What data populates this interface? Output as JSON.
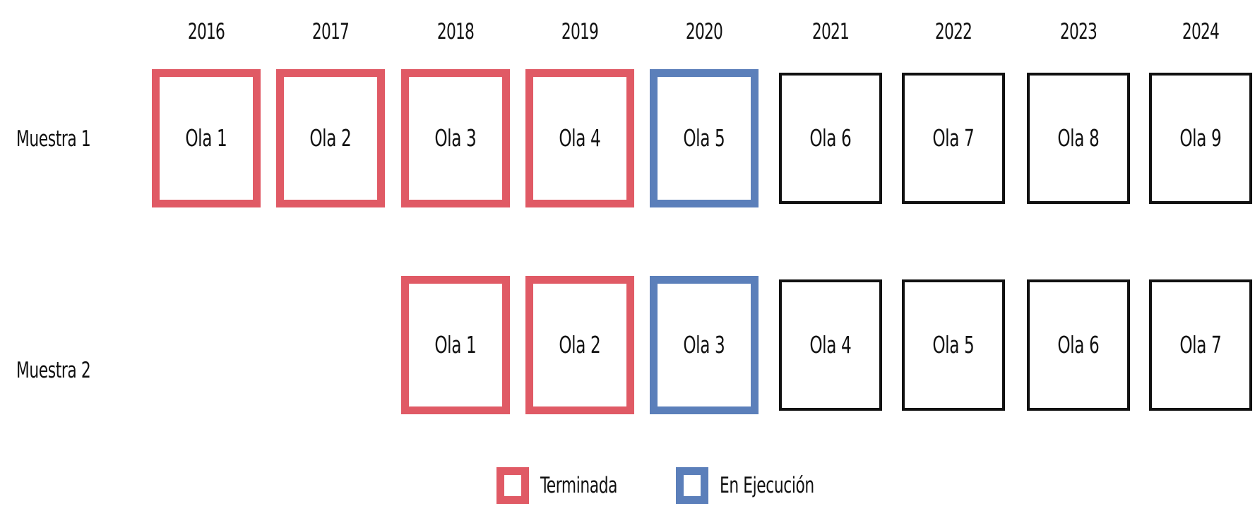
{
  "years": [
    "2016",
    "2017",
    "2018",
    "2019",
    "2020",
    "2021",
    "2022",
    "2023",
    "2024"
  ],
  "rows": [
    {
      "label": "Muestra 1",
      "waves": [
        {
          "label": "Ola 1",
          "year": "2016",
          "status": "Terminada"
        },
        {
          "label": "Ola 2",
          "year": "2017",
          "status": "Terminada"
        },
        {
          "label": "Ola 3",
          "year": "2018",
          "status": "Terminada"
        },
        {
          "label": "Ola 4",
          "year": "2019",
          "status": "Terminada"
        },
        {
          "label": "Ola 5",
          "year": "2020",
          "status": "En Ejecución"
        },
        {
          "label": "Ola 6",
          "year": "2021",
          "status": "pending"
        },
        {
          "label": "Ola 7",
          "year": "2022",
          "status": "pending"
        },
        {
          "label": "Ola 8",
          "year": "2023",
          "status": "pending"
        },
        {
          "label": "Ola 9",
          "year": "2024",
          "status": "pending"
        }
      ]
    },
    {
      "label": "Muestra 2",
      "waves": [
        {
          "label": "Ola 1",
          "year": "2018",
          "status": "Terminada"
        },
        {
          "label": "Ola 2",
          "year": "2019",
          "status": "Terminada"
        },
        {
          "label": "Ola 3",
          "year": "2020",
          "status": "En Ejecución"
        },
        {
          "label": "Ola 4",
          "year": "2021",
          "status": "pending"
        },
        {
          "label": "Ola 5",
          "year": "2022",
          "status": "pending"
        },
        {
          "label": "Ola 6",
          "year": "2023",
          "status": "pending"
        },
        {
          "label": "Ola 7",
          "year": "2024",
          "status": "pending"
        }
      ]
    }
  ],
  "legend": {
    "items": [
      {
        "label": "Terminada",
        "color": "#e05a65"
      },
      {
        "label": "En Ejecución",
        "color": "#5b7fba"
      }
    ]
  },
  "colors": {
    "done": "#e05a65",
    "running": "#5b7fba",
    "pending": "#111111"
  }
}
